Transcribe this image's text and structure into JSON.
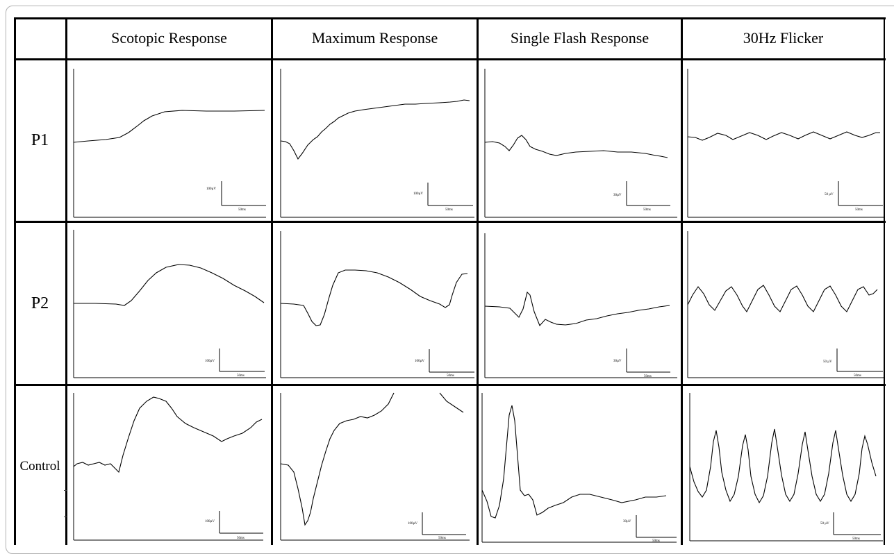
{
  "columns": [
    "Scotopic Response",
    "Maximum Response",
    "Single Flash Response",
    "30Hz Flicker"
  ],
  "rows": [
    "P1",
    "P2",
    "Control"
  ],
  "scale_bars": {
    "scotopic": {
      "amplitude": "100µV",
      "time": "50ms"
    },
    "maximum": {
      "amplitude": "100µV",
      "time": "50ms"
    },
    "single_flash": {
      "amplitude": "30µV",
      "time": "50ms"
    },
    "flicker": {
      "amplitude": "50 µV",
      "time": "50ms"
    }
  }
}
